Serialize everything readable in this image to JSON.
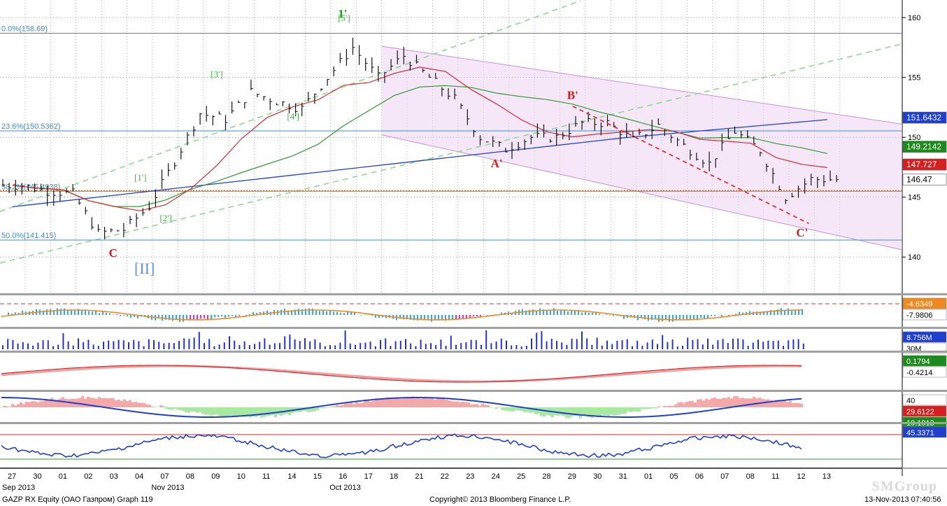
{
  "footer": {
    "left": "GAZP RX Equity (ОАО Газпром) Graph 119",
    "center": "Copyright© 2013 Bloomberg Finance L.P.",
    "right": "13-Nov-2013 07:40:56"
  },
  "watermark": "SMGroup",
  "chart_data": [
    {
      "type": "line",
      "title": "",
      "x": [
        "27",
        "30",
        "01",
        "02",
        "03",
        "04",
        "07",
        "08",
        "09",
        "10",
        "11",
        "14",
        "15",
        "16",
        "17",
        "18",
        "21",
        "22",
        "23",
        "24",
        "25",
        "28",
        "29",
        "30",
        "31",
        "01",
        "05",
        "06",
        "07",
        "08",
        "11",
        "12",
        "13"
      ],
      "x_month_labels": [
        {
          "label": "Sep 2013",
          "at": "27"
        },
        {
          "label": "Oct 2013",
          "at": "16"
        },
        {
          "label": "Nov 2013",
          "at": "07"
        }
      ],
      "ylim": [
        137.5,
        161
      ],
      "y_ticks": [
        140,
        145,
        150,
        155,
        160
      ],
      "series": [
        {
          "type": "ohlc",
          "values": [
            146,
            145.5,
            145.3,
            142,
            142.3,
            144.2,
            148,
            152,
            151.5,
            153.8,
            153,
            152.4,
            155,
            157.5,
            155,
            156.8,
            155,
            153.2,
            150,
            149,
            150,
            150,
            151.2,
            151.2,
            149.8,
            151,
            149.3,
            147.8,
            150.5,
            148.9,
            145,
            146.5,
            146.47
          ]
        }
      ],
      "fib_levels": [
        {
          "label": "0.0%(158.69)",
          "value": 158.69
        },
        {
          "label": "23.6%(150.5362)",
          "value": 150.5362
        },
        {
          "label": "38.2%(145.4938)",
          "value": 145.4938
        },
        {
          "label": "50.0%(141.415)",
          "value": 141.415
        }
      ],
      "right_labels": [
        {
          "text": "151.6432",
          "value": 151.6432,
          "color": "#1f3fd1"
        },
        {
          "text": "149.2142",
          "value": 149.2142,
          "color": "#1e8a1e"
        },
        {
          "text": "147.727",
          "value": 147.727,
          "color": "#d62020"
        },
        {
          "text": "146.47",
          "value": 146.47,
          "color": "#000000"
        }
      ],
      "wave_labels": [
        {
          "text": "1'",
          "x": "16",
          "y": 160,
          "color": "#1e9e1e"
        },
        {
          "text": "[5']",
          "x": "16",
          "y": 159.7,
          "color": "#3cb43c"
        },
        {
          "text": "[3']",
          "x": "09",
          "y": 155,
          "color": "#3cb43c"
        },
        {
          "text": "[4']",
          "x": "14",
          "y": 151.5,
          "color": "#3cb43c"
        },
        {
          "text": "[1']",
          "x": "04",
          "y": 146.4,
          "color": "#3cb43c"
        },
        {
          "text": "[2']",
          "x": "07",
          "y": 143,
          "color": "#3cb43c"
        },
        {
          "text": "C",
          "x": "03",
          "y": 140,
          "color": "#d41a1a"
        },
        {
          "text": "[II]",
          "x": "04",
          "y": 138.6,
          "color": "#6a8fd8"
        },
        {
          "text": "A'",
          "x": "24",
          "y": 147.5,
          "color": "#d41a1a"
        },
        {
          "text": "B'",
          "x": "29",
          "y": 153.2,
          "color": "#d41a1a"
        },
        {
          "text": "C'",
          "x": "12",
          "y": 141.7,
          "color": "#d41a1a"
        }
      ]
    },
    {
      "type": "bar",
      "title": "",
      "series": [
        {
          "name": "",
          "values": []
        }
      ],
      "right_labels": [
        {
          "text": "-4.6349",
          "color": "#f08a20"
        },
        {
          "text": "-7.9806",
          "color": "#000000"
        }
      ]
    },
    {
      "type": "bar",
      "title": "",
      "right_labels": [
        {
          "text": "8.756M",
          "color": "#1f3fd1"
        },
        {
          "text": "30M",
          "color": "#000000"
        }
      ]
    },
    {
      "type": "line",
      "title": "",
      "right_labels": [
        {
          "text": "0.1794",
          "color": "#1e8a1e"
        },
        {
          "text": "-0.4214",
          "color": "#000000"
        }
      ]
    },
    {
      "type": "area",
      "title": "",
      "right_labels": [
        {
          "text": "40",
          "color": "#000000"
        },
        {
          "text": "29.6122",
          "color": "#d62020"
        },
        {
          "text": "19.1913",
          "color": "#1e8a1e"
        }
      ]
    },
    {
      "type": "line",
      "title": "",
      "right_labels": [
        {
          "text": "45.3371",
          "color": "#1f3fd1"
        }
      ]
    }
  ]
}
